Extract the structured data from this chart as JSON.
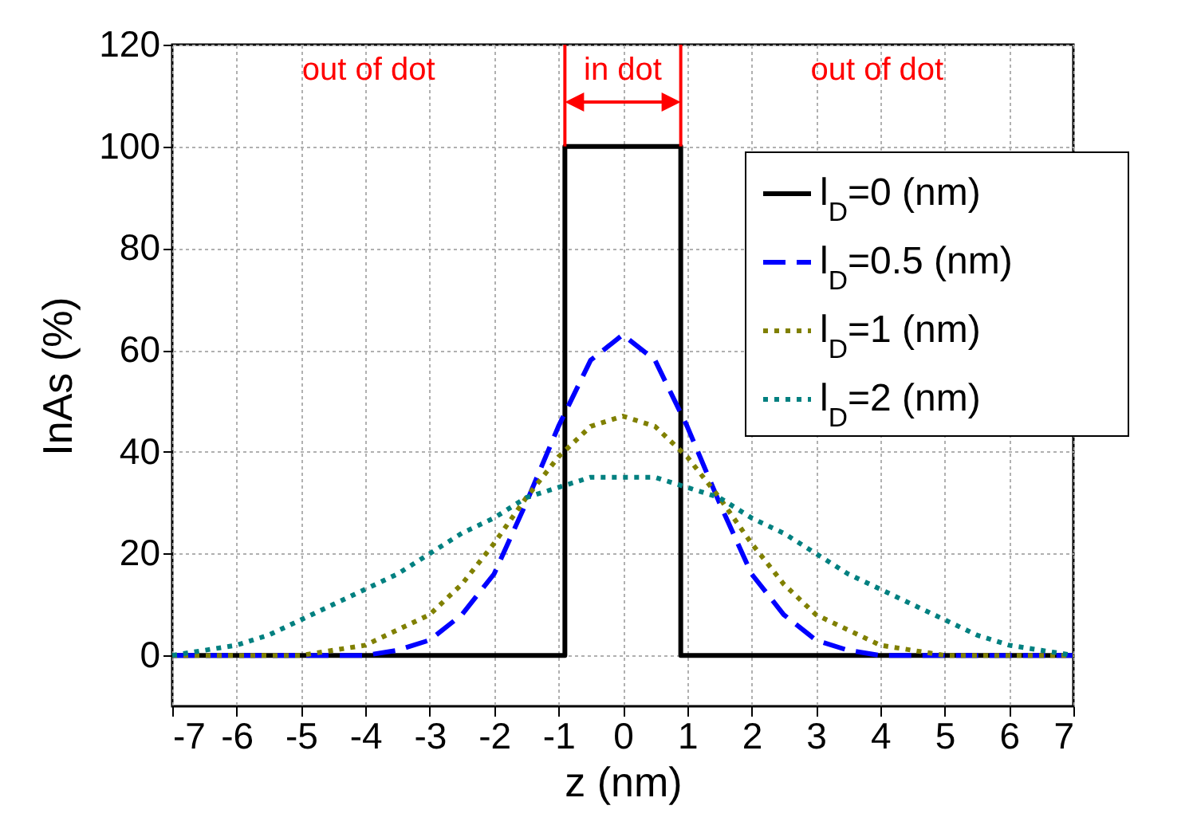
{
  "chart_data": {
    "type": "line",
    "xlabel": "z (nm)",
    "ylabel": "InAs (%)",
    "xlim": [
      -7,
      7
    ],
    "xticks": [
      -7,
      -6,
      -5,
      -4,
      -3,
      -2,
      -1,
      0,
      1,
      2,
      3,
      4,
      5,
      6,
      7
    ],
    "ylim": [
      -10,
      120
    ],
    "yticks": [
      0,
      20,
      40,
      60,
      80,
      100,
      120
    ],
    "grid": true,
    "legend": "top right",
    "annotations": [
      "out of dot",
      {
        "text": "in dot",
        "x": 0,
        "y": 100
      },
      "out of dot"
    ],
    "series": [
      {
        "name": "l$_{D}$=0 (nm)",
        "color": "#000000",
        "line_style": "solid",
        "x": [
          -7,
          -0.9,
          -0.9,
          0.9,
          0.9,
          7
        ],
        "values": [
          0,
          0,
          100,
          100,
          0,
          0
        ]
      },
      {
        "name": "l$_{D}$=0.5 (nm)",
        "color": "#0000ff",
        "line_style": "dashed",
        "x": [
          -7,
          -6.5,
          -6,
          -5.5,
          -5,
          -4.5,
          -4,
          -3.5,
          -3,
          -2.5,
          -2,
          -1.5,
          -1,
          -0.5,
          0,
          0.5,
          1,
          1.5,
          2,
          2.5,
          3,
          3.5,
          4,
          4.5,
          5,
          5.5,
          6,
          6.5,
          7
        ],
        "values": [
          0,
          0,
          0,
          0,
          0,
          0,
          0,
          1,
          3,
          8,
          16,
          30,
          45,
          58,
          63,
          58,
          45,
          30,
          16,
          8,
          3,
          1,
          0,
          0,
          0,
          0,
          0,
          0,
          0
        ]
      },
      {
        "name": "l$_{D}$=1 (nm)",
        "color": "#808000",
        "line_style": "dotted",
        "x": [
          -7,
          -6.5,
          -6,
          -5.5,
          -5,
          -4.5,
          -4,
          -3.5,
          -3,
          -2.5,
          -2,
          -1.5,
          -1,
          -0.5,
          0,
          0.5,
          1,
          1.5,
          2,
          2.5,
          3,
          3.5,
          4,
          4.5,
          5,
          5.5,
          6,
          6.5,
          7
        ],
        "values": [
          0,
          0,
          0,
          0,
          0,
          1,
          2,
          5,
          8,
          14,
          22,
          31,
          39,
          45,
          47,
          45,
          39,
          31,
          22,
          14,
          8,
          5,
          2,
          1,
          0,
          0,
          0,
          0,
          0
        ]
      },
      {
        "name": "l$_{D}$=2 (nm)",
        "color": "#008080",
        "line_style": "dotted",
        "x": [
          -7,
          -6.5,
          -6,
          -5.5,
          -5,
          -4.5,
          -4,
          -3.5,
          -3,
          -2.5,
          -2,
          -1.5,
          -1,
          -0.5,
          0,
          0.5,
          1,
          1.5,
          2,
          2.5,
          3,
          3.5,
          4,
          4.5,
          5,
          5.5,
          6,
          6.5,
          7
        ],
        "values": [
          0,
          1,
          2,
          4,
          7,
          10,
          13,
          16,
          20,
          24,
          27,
          31,
          33,
          35,
          35,
          35,
          33,
          31,
          27,
          24,
          20,
          16,
          13,
          10,
          7,
          4,
          2,
          1,
          0
        ]
      }
    ]
  }
}
